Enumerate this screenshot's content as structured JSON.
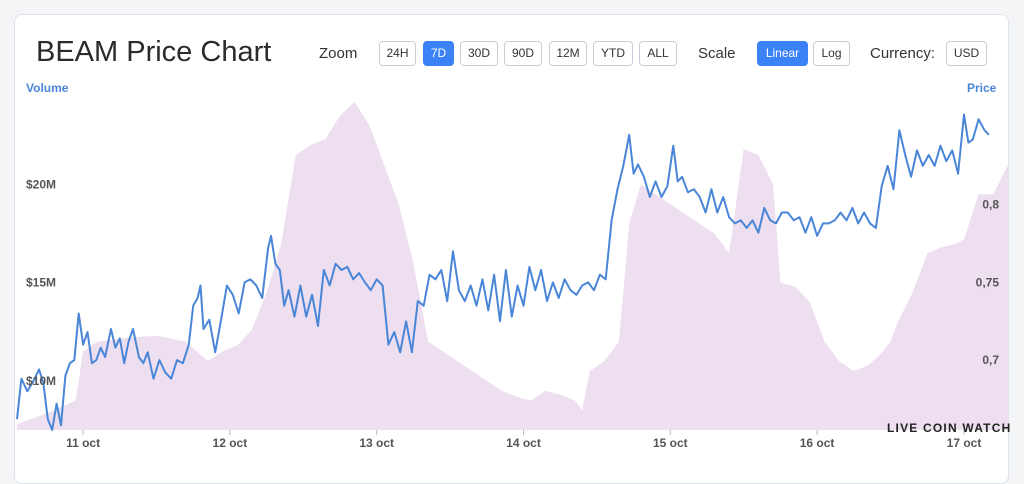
{
  "header": {
    "title": "BEAM Price Chart",
    "zoom_label": "Zoom",
    "zoom_options": [
      "24H",
      "7D",
      "30D",
      "90D",
      "12M",
      "YTD",
      "ALL"
    ],
    "zoom_selected": "7D",
    "scale_label": "Scale",
    "scale_options": [
      "Linear",
      "Log"
    ],
    "scale_selected": "Linear",
    "currency_label": "Currency:",
    "currency_value": "USD"
  },
  "watermark": "LIVE COIN WATCH",
  "colors": {
    "price_line": "#4a86d8",
    "volume_area": "#eddff0",
    "accent": "#3b82f6"
  },
  "chart_data": {
    "type": "line",
    "title": "BEAM Price Chart",
    "x_labels": [
      "11 oct",
      "12 oct",
      "13 oct",
      "14 oct",
      "15 oct",
      "16 oct",
      "17 oct"
    ],
    "x_domain": [
      10.55,
      17.3
    ],
    "volume_axis": {
      "label": "Volume",
      "ticks": [
        "$10M",
        "$15M",
        "$20M"
      ],
      "tick_values": [
        10,
        15,
        20
      ],
      "unit": "M USD",
      "range": [
        7.5,
        24.5
      ]
    },
    "price_axis": {
      "label": "Price",
      "ticks": [
        "0,7",
        "0,75",
        "0,8"
      ],
      "tick_values": [
        0.7,
        0.75,
        0.8
      ],
      "unit": "USD",
      "range": [
        0.655,
        0.87
      ]
    },
    "grid": false,
    "series": [
      {
        "name": "Price",
        "axis": "right",
        "points": [
          [
            10.55,
            0.662
          ],
          [
            10.58,
            0.688
          ],
          [
            10.62,
            0.68
          ],
          [
            10.66,
            0.686
          ],
          [
            10.7,
            0.694
          ],
          [
            10.73,
            0.685
          ],
          [
            10.76,
            0.662
          ],
          [
            10.79,
            0.655
          ],
          [
            10.82,
            0.672
          ],
          [
            10.85,
            0.658
          ],
          [
            10.88,
            0.69
          ],
          [
            10.91,
            0.698
          ],
          [
            10.94,
            0.7
          ],
          [
            10.97,
            0.73
          ],
          [
            11.0,
            0.71
          ],
          [
            11.03,
            0.718
          ],
          [
            11.06,
            0.698
          ],
          [
            11.09,
            0.7
          ],
          [
            11.12,
            0.708
          ],
          [
            11.15,
            0.702
          ],
          [
            11.19,
            0.72
          ],
          [
            11.22,
            0.708
          ],
          [
            11.25,
            0.714
          ],
          [
            11.28,
            0.698
          ],
          [
            11.31,
            0.712
          ],
          [
            11.34,
            0.72
          ],
          [
            11.38,
            0.702
          ],
          [
            11.41,
            0.698
          ],
          [
            11.44,
            0.705
          ],
          [
            11.48,
            0.688
          ],
          [
            11.52,
            0.7
          ],
          [
            11.56,
            0.692
          ],
          [
            11.6,
            0.688
          ],
          [
            11.64,
            0.7
          ],
          [
            11.68,
            0.698
          ],
          [
            11.72,
            0.71
          ],
          [
            11.75,
            0.735
          ],
          [
            11.78,
            0.74
          ],
          [
            11.8,
            0.748
          ],
          [
            11.82,
            0.72
          ],
          [
            11.86,
            0.726
          ],
          [
            11.9,
            0.705
          ],
          [
            11.94,
            0.726
          ],
          [
            11.98,
            0.748
          ],
          [
            12.02,
            0.742
          ],
          [
            12.06,
            0.73
          ],
          [
            12.1,
            0.75
          ],
          [
            12.14,
            0.752
          ],
          [
            12.18,
            0.748
          ],
          [
            12.22,
            0.74
          ],
          [
            12.26,
            0.772
          ],
          [
            12.28,
            0.78
          ],
          [
            12.31,
            0.762
          ],
          [
            12.34,
            0.758
          ],
          [
            12.37,
            0.735
          ],
          [
            12.4,
            0.745
          ],
          [
            12.44,
            0.728
          ],
          [
            12.48,
            0.748
          ],
          [
            12.52,
            0.728
          ],
          [
            12.56,
            0.742
          ],
          [
            12.6,
            0.722
          ],
          [
            12.64,
            0.758
          ],
          [
            12.68,
            0.748
          ],
          [
            12.72,
            0.762
          ],
          [
            12.76,
            0.758
          ],
          [
            12.8,
            0.76
          ],
          [
            12.84,
            0.752
          ],
          [
            12.88,
            0.756
          ],
          [
            12.92,
            0.75
          ],
          [
            12.96,
            0.745
          ],
          [
            13.0,
            0.752
          ],
          [
            13.04,
            0.748
          ],
          [
            13.08,
            0.71
          ],
          [
            13.12,
            0.718
          ],
          [
            13.16,
            0.705
          ],
          [
            13.2,
            0.725
          ],
          [
            13.24,
            0.705
          ],
          [
            13.28,
            0.738
          ],
          [
            13.32,
            0.735
          ],
          [
            13.36,
            0.755
          ],
          [
            13.4,
            0.752
          ],
          [
            13.44,
            0.758
          ],
          [
            13.48,
            0.738
          ],
          [
            13.52,
            0.77
          ],
          [
            13.56,
            0.745
          ],
          [
            13.6,
            0.738
          ],
          [
            13.64,
            0.748
          ],
          [
            13.68,
            0.735
          ],
          [
            13.72,
            0.752
          ],
          [
            13.76,
            0.732
          ],
          [
            13.8,
            0.755
          ],
          [
            13.84,
            0.725
          ],
          [
            13.88,
            0.758
          ],
          [
            13.92,
            0.728
          ],
          [
            13.96,
            0.748
          ],
          [
            14.0,
            0.735
          ],
          [
            14.04,
            0.76
          ],
          [
            14.08,
            0.745
          ],
          [
            14.12,
            0.758
          ],
          [
            14.16,
            0.738
          ],
          [
            14.2,
            0.75
          ],
          [
            14.24,
            0.74
          ],
          [
            14.28,
            0.752
          ],
          [
            14.32,
            0.745
          ],
          [
            14.36,
            0.742
          ],
          [
            14.4,
            0.748
          ],
          [
            14.44,
            0.75
          ],
          [
            14.48,
            0.745
          ],
          [
            14.52,
            0.755
          ],
          [
            14.56,
            0.752
          ],
          [
            14.6,
            0.79
          ],
          [
            14.64,
            0.81
          ],
          [
            14.68,
            0.825
          ],
          [
            14.72,
            0.845
          ],
          [
            14.75,
            0.82
          ],
          [
            14.78,
            0.826
          ],
          [
            14.82,
            0.818
          ],
          [
            14.86,
            0.805
          ],
          [
            14.9,
            0.815
          ],
          [
            14.94,
            0.805
          ],
          [
            14.98,
            0.812
          ],
          [
            15.02,
            0.838
          ],
          [
            15.05,
            0.815
          ],
          [
            15.08,
            0.818
          ],
          [
            15.12,
            0.808
          ],
          [
            15.16,
            0.81
          ],
          [
            15.2,
            0.805
          ],
          [
            15.24,
            0.795
          ],
          [
            15.28,
            0.81
          ],
          [
            15.32,
            0.795
          ],
          [
            15.36,
            0.805
          ],
          [
            15.4,
            0.792
          ],
          [
            15.44,
            0.788
          ],
          [
            15.48,
            0.79
          ],
          [
            15.52,
            0.785
          ],
          [
            15.56,
            0.79
          ],
          [
            15.6,
            0.782
          ],
          [
            15.64,
            0.798
          ],
          [
            15.68,
            0.79
          ],
          [
            15.72,
            0.788
          ],
          [
            15.76,
            0.795
          ],
          [
            15.8,
            0.795
          ],
          [
            15.84,
            0.79
          ],
          [
            15.88,
            0.792
          ],
          [
            15.92,
            0.782
          ],
          [
            15.96,
            0.792
          ],
          [
            16.0,
            0.78
          ],
          [
            16.04,
            0.788
          ],
          [
            16.08,
            0.788
          ],
          [
            16.12,
            0.79
          ],
          [
            16.16,
            0.795
          ],
          [
            16.2,
            0.79
          ],
          [
            16.24,
            0.798
          ],
          [
            16.28,
            0.788
          ],
          [
            16.32,
            0.795
          ],
          [
            16.36,
            0.788
          ],
          [
            16.4,
            0.785
          ],
          [
            16.44,
            0.812
          ],
          [
            16.48,
            0.825
          ],
          [
            16.52,
            0.81
          ],
          [
            16.56,
            0.848
          ],
          [
            16.6,
            0.832
          ],
          [
            16.64,
            0.818
          ],
          [
            16.68,
            0.835
          ],
          [
            16.72,
            0.825
          ],
          [
            16.76,
            0.832
          ],
          [
            16.8,
            0.825
          ],
          [
            16.84,
            0.838
          ],
          [
            16.88,
            0.828
          ],
          [
            16.92,
            0.835
          ],
          [
            16.96,
            0.82
          ],
          [
            17.0,
            0.858
          ],
          [
            17.03,
            0.84
          ],
          [
            17.06,
            0.842
          ],
          [
            17.1,
            0.855
          ],
          [
            17.14,
            0.848
          ],
          [
            17.17,
            0.845
          ]
        ]
      },
      {
        "name": "Volume",
        "axis": "left",
        "points": [
          [
            10.55,
            7.8
          ],
          [
            10.7,
            8.2
          ],
          [
            10.8,
            8.5
          ],
          [
            10.95,
            9.0
          ],
          [
            11.0,
            11.5
          ],
          [
            11.1,
            12.0
          ],
          [
            11.3,
            12.2
          ],
          [
            11.5,
            12.3
          ],
          [
            11.7,
            12.0
          ],
          [
            11.85,
            11.0
          ],
          [
            11.95,
            11.5
          ],
          [
            12.05,
            11.8
          ],
          [
            12.15,
            12.6
          ],
          [
            12.25,
            14.5
          ],
          [
            12.35,
            17.0
          ],
          [
            12.45,
            21.5
          ],
          [
            12.55,
            22.0
          ],
          [
            12.65,
            22.3
          ],
          [
            12.75,
            23.5
          ],
          [
            12.85,
            24.2
          ],
          [
            12.95,
            23.0
          ],
          [
            13.05,
            21.0
          ],
          [
            13.15,
            19.0
          ],
          [
            13.25,
            16.0
          ],
          [
            13.35,
            12.0
          ],
          [
            13.45,
            11.5
          ],
          [
            13.55,
            11.0
          ],
          [
            13.65,
            10.5
          ],
          [
            13.75,
            10.0
          ],
          [
            13.85,
            9.5
          ],
          [
            13.95,
            9.2
          ],
          [
            14.05,
            9.0
          ],
          [
            14.15,
            9.5
          ],
          [
            14.25,
            9.3
          ],
          [
            14.35,
            9.0
          ],
          [
            14.4,
            8.5
          ],
          [
            14.45,
            10.5
          ],
          [
            14.55,
            11.0
          ],
          [
            14.65,
            12.0
          ],
          [
            14.72,
            18.0
          ],
          [
            14.8,
            20.0
          ],
          [
            14.9,
            19.5
          ],
          [
            15.0,
            19.0
          ],
          [
            15.1,
            18.5
          ],
          [
            15.2,
            18.0
          ],
          [
            15.3,
            17.5
          ],
          [
            15.4,
            16.5
          ],
          [
            15.5,
            21.8
          ],
          [
            15.6,
            21.5
          ],
          [
            15.7,
            20.0
          ],
          [
            15.75,
            15.0
          ],
          [
            15.85,
            14.8
          ],
          [
            15.95,
            14.0
          ],
          [
            16.05,
            12.0
          ],
          [
            16.15,
            11.0
          ],
          [
            16.25,
            10.5
          ],
          [
            16.35,
            10.8
          ],
          [
            16.45,
            11.5
          ],
          [
            16.5,
            12.0
          ],
          [
            16.55,
            13.0
          ],
          [
            16.65,
            14.5
          ],
          [
            16.75,
            16.5
          ],
          [
            16.85,
            16.8
          ],
          [
            16.95,
            17.0
          ],
          [
            17.0,
            17.2
          ],
          [
            17.1,
            19.5
          ],
          [
            17.2,
            19.5
          ],
          [
            17.3,
            21.0
          ]
        ]
      }
    ]
  }
}
